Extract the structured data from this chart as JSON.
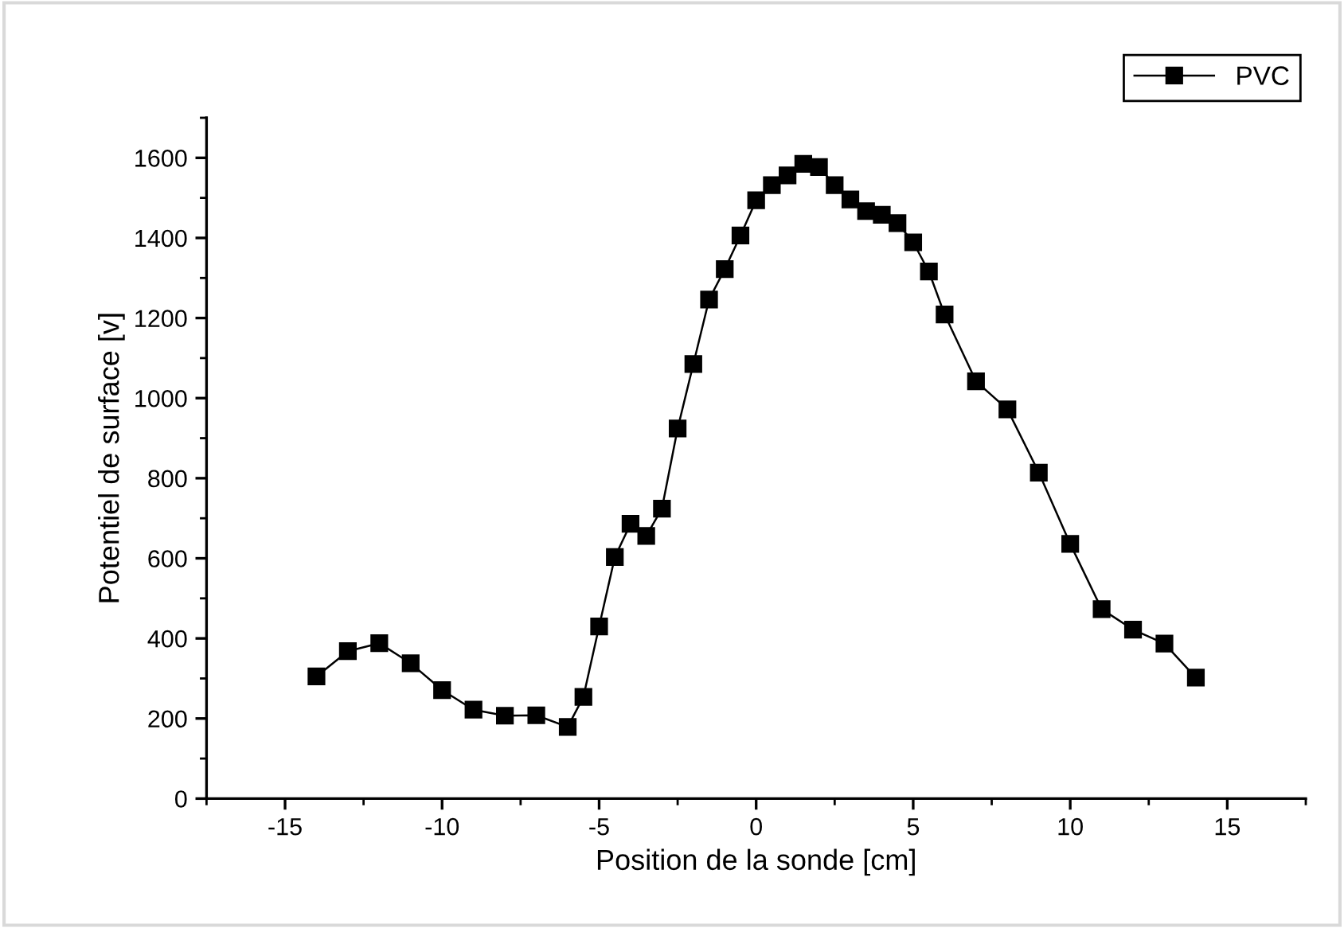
{
  "chart_data": {
    "type": "line",
    "xlabel": "Position de la sonde [cm]",
    "ylabel": "Potentiel de surface [v]",
    "x": [
      -14,
      -13,
      -12,
      -11,
      -10,
      -9,
      -8,
      -7,
      -6,
      -5.5,
      -5,
      -4.5,
      -4,
      -3.5,
      -3,
      -2.5,
      -2,
      -1.5,
      -1,
      -0.5,
      0,
      0.5,
      1,
      1.5,
      2,
      2.5,
      3,
      3.5,
      4,
      4.5,
      5,
      5.5,
      6,
      7,
      8,
      9,
      10,
      11,
      12,
      13,
      14
    ],
    "series": [
      {
        "name": "PVC",
        "color": "#000000",
        "values": [
          305,
          368,
          388,
          338,
          271,
          222,
          207,
          208,
          179,
          254,
          430,
          603,
          686,
          656,
          724,
          924,
          1085,
          1246,
          1322,
          1406,
          1494,
          1532,
          1556,
          1585,
          1577,
          1532,
          1496,
          1467,
          1458,
          1437,
          1389,
          1316,
          1209,
          1042,
          972,
          814,
          636,
          473,
          422,
          387,
          302
        ]
      }
    ],
    "xlim": [
      -17.5,
      17.5
    ],
    "xticks": [
      -15,
      -10,
      -5,
      0,
      5,
      10,
      15
    ],
    "ylim": [
      0,
      1700
    ],
    "yticks": [
      0,
      200,
      400,
      600,
      800,
      1000,
      1200,
      1400,
      1600
    ],
    "grid": false,
    "legend": "top right",
    "marker": "square",
    "line_style": "solid"
  }
}
